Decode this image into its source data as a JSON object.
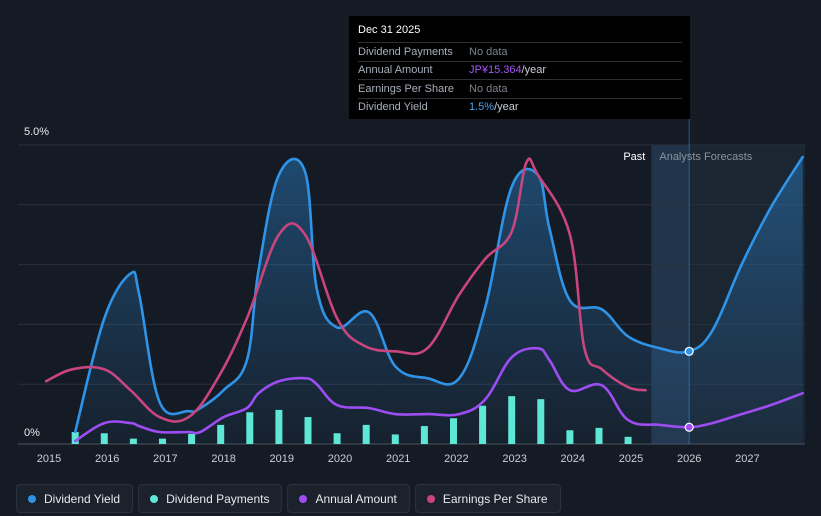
{
  "chart_data": {
    "type": "line",
    "title": "",
    "y_axis_labels": [
      "5.0%",
      "0%"
    ],
    "ylim": [
      0,
      5.0
    ],
    "x": [
      2015,
      2016,
      2017,
      2018,
      2019,
      2020,
      2021,
      2022,
      2023,
      2024,
      2025,
      2026,
      2027
    ],
    "x_tick_labels": [
      "2015",
      "2016",
      "2017",
      "2018",
      "2019",
      "2020",
      "2021",
      "2022",
      "2023",
      "2024",
      "2025",
      "2026",
      "2027"
    ],
    "region_labels": {
      "past": "Past",
      "forecast": "Analysts Forecasts"
    },
    "past_end": 2025.0,
    "forecast_start": 2025.35,
    "marker_x": 2026.0,
    "colors": {
      "dividend_yield": "#2f94e8",
      "dividend_payments": "#5ee6d6",
      "annual_amount": "#9d4df2",
      "earnings_per_share": "#c9457f"
    },
    "series": [
      {
        "name": "Dividend Yield",
        "key": "dividend_yield",
        "fill": true,
        "points": [
          [
            2015.45,
            0.2
          ],
          [
            2015.95,
            2.1
          ],
          [
            2016.4,
            2.85
          ],
          [
            2016.55,
            2.5
          ],
          [
            2016.9,
            0.7
          ],
          [
            2017.4,
            0.55
          ],
          [
            2017.6,
            0.6
          ],
          [
            2018.0,
            0.9
          ],
          [
            2018.4,
            1.4
          ],
          [
            2018.6,
            2.9
          ],
          [
            2018.95,
            4.5
          ],
          [
            2019.4,
            4.55
          ],
          [
            2019.6,
            2.6
          ],
          [
            2019.95,
            1.95
          ],
          [
            2020.5,
            2.2
          ],
          [
            2020.95,
            1.3
          ],
          [
            2021.5,
            1.1
          ],
          [
            2022.05,
            1.1
          ],
          [
            2022.5,
            2.3
          ],
          [
            2022.95,
            4.3
          ],
          [
            2023.4,
            4.5
          ],
          [
            2023.6,
            3.6
          ],
          [
            2023.95,
            2.4
          ],
          [
            2024.5,
            2.25
          ],
          [
            2024.95,
            1.8
          ],
          [
            2025.5,
            1.6
          ],
          [
            2026.0,
            1.55
          ],
          [
            2026.4,
            1.9
          ],
          [
            2026.9,
            3.0
          ],
          [
            2027.4,
            3.95
          ],
          [
            2027.95,
            4.8
          ]
        ]
      },
      {
        "name": "Annual Amount",
        "key": "annual_amount",
        "fill": false,
        "points": [
          [
            2015.45,
            0.05
          ],
          [
            2015.95,
            0.35
          ],
          [
            2016.4,
            0.35
          ],
          [
            2016.55,
            0.3
          ],
          [
            2016.9,
            0.2
          ],
          [
            2017.4,
            0.2
          ],
          [
            2017.6,
            0.2
          ],
          [
            2018.0,
            0.45
          ],
          [
            2018.4,
            0.6
          ],
          [
            2018.6,
            0.85
          ],
          [
            2018.95,
            1.05
          ],
          [
            2019.4,
            1.1
          ],
          [
            2019.6,
            1.0
          ],
          [
            2019.95,
            0.65
          ],
          [
            2020.5,
            0.6
          ],
          [
            2020.95,
            0.5
          ],
          [
            2021.5,
            0.5
          ],
          [
            2022.05,
            0.5
          ],
          [
            2022.5,
            0.75
          ],
          [
            2022.95,
            1.45
          ],
          [
            2023.4,
            1.6
          ],
          [
            2023.6,
            1.4
          ],
          [
            2023.95,
            0.9
          ],
          [
            2024.5,
            0.98
          ],
          [
            2024.95,
            0.4
          ],
          [
            2025.5,
            0.32
          ],
          [
            2026.0,
            0.28
          ],
          [
            2026.4,
            0.35
          ],
          [
            2026.9,
            0.5
          ],
          [
            2027.4,
            0.65
          ],
          [
            2027.95,
            0.85
          ]
        ]
      },
      {
        "name": "Earnings Per Share",
        "key": "earnings_per_share",
        "fill": false,
        "points": [
          [
            2014.95,
            1.05
          ],
          [
            2015.4,
            1.25
          ],
          [
            2015.95,
            1.25
          ],
          [
            2016.4,
            0.9
          ],
          [
            2016.9,
            0.45
          ],
          [
            2017.4,
            0.45
          ],
          [
            2017.9,
            1.1
          ],
          [
            2018.4,
            2.1
          ],
          [
            2018.95,
            3.5
          ],
          [
            2019.4,
            3.5
          ],
          [
            2019.95,
            2.1
          ],
          [
            2020.4,
            1.65
          ],
          [
            2020.95,
            1.55
          ],
          [
            2021.5,
            1.6
          ],
          [
            2022.05,
            2.5
          ],
          [
            2022.5,
            3.1
          ],
          [
            2022.95,
            3.55
          ],
          [
            2023.2,
            4.7
          ],
          [
            2023.4,
            4.5
          ],
          [
            2023.95,
            3.5
          ],
          [
            2024.2,
            1.6
          ],
          [
            2024.5,
            1.25
          ],
          [
            2024.95,
            0.95
          ],
          [
            2025.25,
            0.9
          ]
        ]
      }
    ],
    "dividend_payments_bars": {
      "name": "Dividend Payments",
      "key": "dividend_payments",
      "x": [
        2015.45,
        2015.95,
        2016.45,
        2016.95,
        2017.45,
        2017.95,
        2018.45,
        2018.95,
        2019.45,
        2019.95,
        2020.45,
        2020.95,
        2021.45,
        2021.95,
        2022.45,
        2022.95,
        2023.45,
        2023.95,
        2024.45,
        2024.95
      ],
      "values": [
        0.2,
        0.18,
        0.09,
        0.09,
        0.17,
        0.32,
        0.53,
        0.57,
        0.45,
        0.18,
        0.32,
        0.16,
        0.3,
        0.43,
        0.64,
        0.8,
        0.75,
        0.23,
        0.27,
        0.12
      ]
    }
  },
  "tooltip": {
    "date": "Dec 31 2025",
    "rows": [
      {
        "label": "Dividend Payments",
        "value": "No data"
      },
      {
        "label": "Annual Amount",
        "value_highlight": "JP¥15.364",
        "value_unit": "/year"
      },
      {
        "label": "Earnings Per Share",
        "value": "No data"
      },
      {
        "label": "Dividend Yield",
        "value_highlight": "1.5%",
        "value_unit": "/year"
      }
    ]
  },
  "legend": [
    {
      "label": "Dividend Yield",
      "color": "#2f94e8"
    },
    {
      "label": "Dividend Payments",
      "color": "#5ee6d6"
    },
    {
      "label": "Annual Amount",
      "color": "#9d4df2"
    },
    {
      "label": "Earnings Per Share",
      "color": "#c9457f"
    }
  ]
}
